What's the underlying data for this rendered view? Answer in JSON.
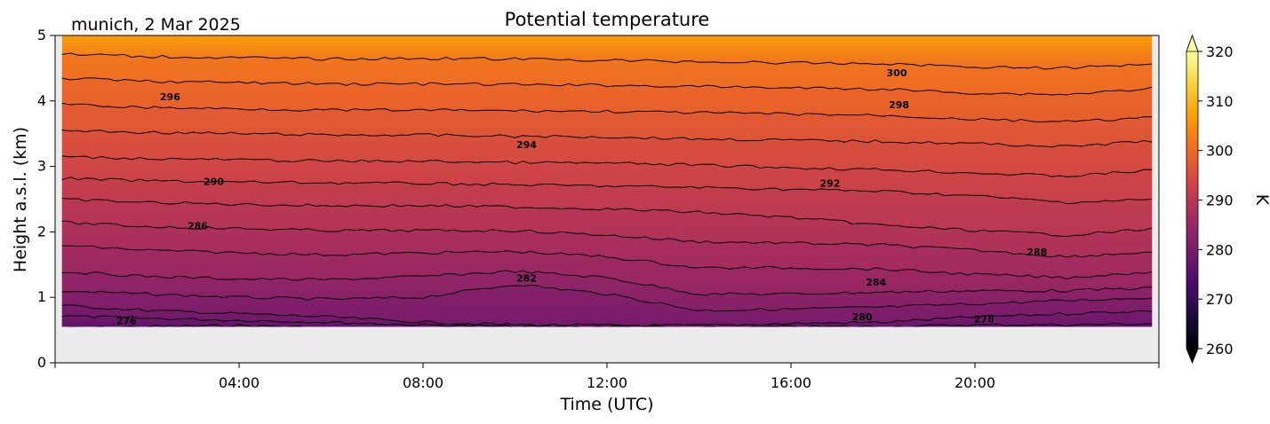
{
  "chart_data": {
    "type": "heatmap",
    "title": "Potential temperature",
    "location_date": "munich, 2 Mar 2025",
    "xlabel": "Time (UTC)",
    "ylabel": "Height a.s.l. (km)",
    "colorbar_label": "K",
    "xlim_hours": [
      0,
      24
    ],
    "ylim_km": [
      0,
      5
    ],
    "data_extent": {
      "x_hours": [
        0.15,
        23.85
      ],
      "y_km": [
        0.55,
        5.0
      ]
    },
    "x_ticks": [
      {
        "value": 4,
        "label": "04:00"
      },
      {
        "value": 8,
        "label": "08:00"
      },
      {
        "value": 12,
        "label": "12:00"
      },
      {
        "value": 16,
        "label": "16:00"
      },
      {
        "value": 20,
        "label": "20:00"
      }
    ],
    "y_ticks": [
      {
        "value": 0,
        "label": "0"
      },
      {
        "value": 1,
        "label": "1"
      },
      {
        "value": 2,
        "label": "2"
      },
      {
        "value": 3,
        "label": "3"
      },
      {
        "value": 4,
        "label": "4"
      },
      {
        "value": 5,
        "label": "5"
      }
    ],
    "colorbar": {
      "cmap": "inferno",
      "range": [
        260,
        320
      ],
      "extend": "both",
      "ticks": [
        "260",
        "270",
        "280",
        "290",
        "300",
        "310",
        "320"
      ]
    },
    "contour_interval_K": 2,
    "contours": [
      {
        "level": 276,
        "heights_km": [
          0.53,
          0.55,
          0.57,
          0.53,
          0.5,
          0.5,
          0.5,
          0.5,
          0.5,
          0.5,
          0.5,
          0.5,
          0.5
        ]
      },
      {
        "level": 278,
        "heights_km": [
          0.72,
          0.68,
          0.65,
          0.62,
          0.58,
          0.55,
          0.55,
          0.53,
          0.55,
          0.55,
          0.58,
          0.58,
          0.6
        ]
      },
      {
        "level": 280,
        "heights_km": [
          0.88,
          0.8,
          0.75,
          0.7,
          0.62,
          0.58,
          0.57,
          0.57,
          0.6,
          0.62,
          0.7,
          0.75,
          0.8
        ]
      },
      {
        "level": 282,
        "heights_km": [
          1.1,
          1.05,
          1.0,
          0.97,
          1.0,
          1.2,
          1.05,
          0.8,
          0.82,
          0.85,
          0.9,
          0.95,
          1.0
        ]
      },
      {
        "level": 284,
        "heights_km": [
          1.4,
          1.32,
          1.28,
          1.27,
          1.32,
          1.4,
          1.3,
          1.05,
          1.05,
          1.08,
          1.1,
          1.1,
          1.15
        ]
      },
      {
        "level": 286,
        "heights_km": [
          1.8,
          1.72,
          1.68,
          1.65,
          1.68,
          1.7,
          1.62,
          1.45,
          1.45,
          1.43,
          1.35,
          1.3,
          1.4
        ]
      },
      {
        "level": 288,
        "heights_km": [
          2.15,
          2.08,
          2.05,
          2.02,
          2.02,
          2.02,
          1.95,
          1.85,
          1.83,
          1.8,
          1.72,
          1.62,
          1.7
        ]
      },
      {
        "level": 290,
        "heights_km": [
          2.5,
          2.45,
          2.42,
          2.4,
          2.4,
          2.38,
          2.35,
          2.3,
          2.22,
          2.1,
          2.02,
          1.95,
          2.05
        ]
      },
      {
        "level": 292,
        "heights_km": [
          2.82,
          2.78,
          2.76,
          2.75,
          2.74,
          2.72,
          2.7,
          2.68,
          2.65,
          2.62,
          2.55,
          2.45,
          2.5
        ]
      },
      {
        "level": 294,
        "heights_km": [
          3.15,
          3.12,
          3.1,
          3.08,
          3.08,
          3.06,
          3.05,
          3.02,
          2.98,
          2.95,
          2.9,
          2.85,
          2.95
        ]
      },
      {
        "level": 296,
        "heights_km": [
          3.55,
          3.52,
          3.5,
          3.48,
          3.48,
          3.46,
          3.45,
          3.42,
          3.4,
          3.38,
          3.35,
          3.3,
          3.4
        ]
      },
      {
        "level": 298,
        "heights_km": [
          3.95,
          3.9,
          3.88,
          3.86,
          3.86,
          3.85,
          3.84,
          3.82,
          3.8,
          3.78,
          3.72,
          3.68,
          3.75
        ]
      },
      {
        "level": 300,
        "heights_km": [
          4.35,
          4.3,
          4.28,
          4.26,
          4.26,
          4.25,
          4.24,
          4.22,
          4.2,
          4.18,
          4.12,
          4.1,
          4.2
        ]
      },
      {
        "level": 302,
        "heights_km": [
          4.72,
          4.68,
          4.66,
          4.64,
          4.65,
          4.64,
          4.62,
          4.6,
          4.58,
          4.57,
          4.52,
          4.5,
          4.58
        ]
      }
    ],
    "contour_x_hours": [
      0,
      2,
      4,
      6,
      8,
      10,
      12,
      14,
      16,
      18,
      20,
      22,
      24
    ],
    "contour_labels": [
      {
        "text": "276",
        "x_hours": 1.55,
        "y_km": 0.63
      },
      {
        "text": "278",
        "x_hours": 20.2,
        "y_km": 0.66
      },
      {
        "text": "280",
        "x_hours": 17.55,
        "y_km": 0.69
      },
      {
        "text": "282",
        "x_hours": 10.25,
        "y_km": 1.28
      },
      {
        "text": "284",
        "x_hours": 17.85,
        "y_km": 1.22
      },
      {
        "text": "286",
        "x_hours": 3.1,
        "y_km": 2.08
      },
      {
        "text": "288",
        "x_hours": 21.35,
        "y_km": 1.68
      },
      {
        "text": "290",
        "x_hours": 3.45,
        "y_km": 2.76
      },
      {
        "text": "292",
        "x_hours": 16.85,
        "y_km": 2.73
      },
      {
        "text": "294",
        "x_hours": 10.25,
        "y_km": 3.32
      },
      {
        "text": "296",
        "x_hours": 2.5,
        "y_km": 4.05
      },
      {
        "text": "298",
        "x_hours": 18.35,
        "y_km": 3.93
      },
      {
        "text": "300",
        "x_hours": 18.3,
        "y_km": 4.42
      }
    ]
  },
  "colors": {
    "missing_data": "#ebebeb",
    "contour_line": "#000000",
    "inferno_stops": [
      "#000004",
      "#1b0c41",
      "#4a0c6b",
      "#781c6d",
      "#a52c60",
      "#cf4446",
      "#ed6925",
      "#fb9b06",
      "#f7d13d",
      "#fcffa4"
    ]
  }
}
